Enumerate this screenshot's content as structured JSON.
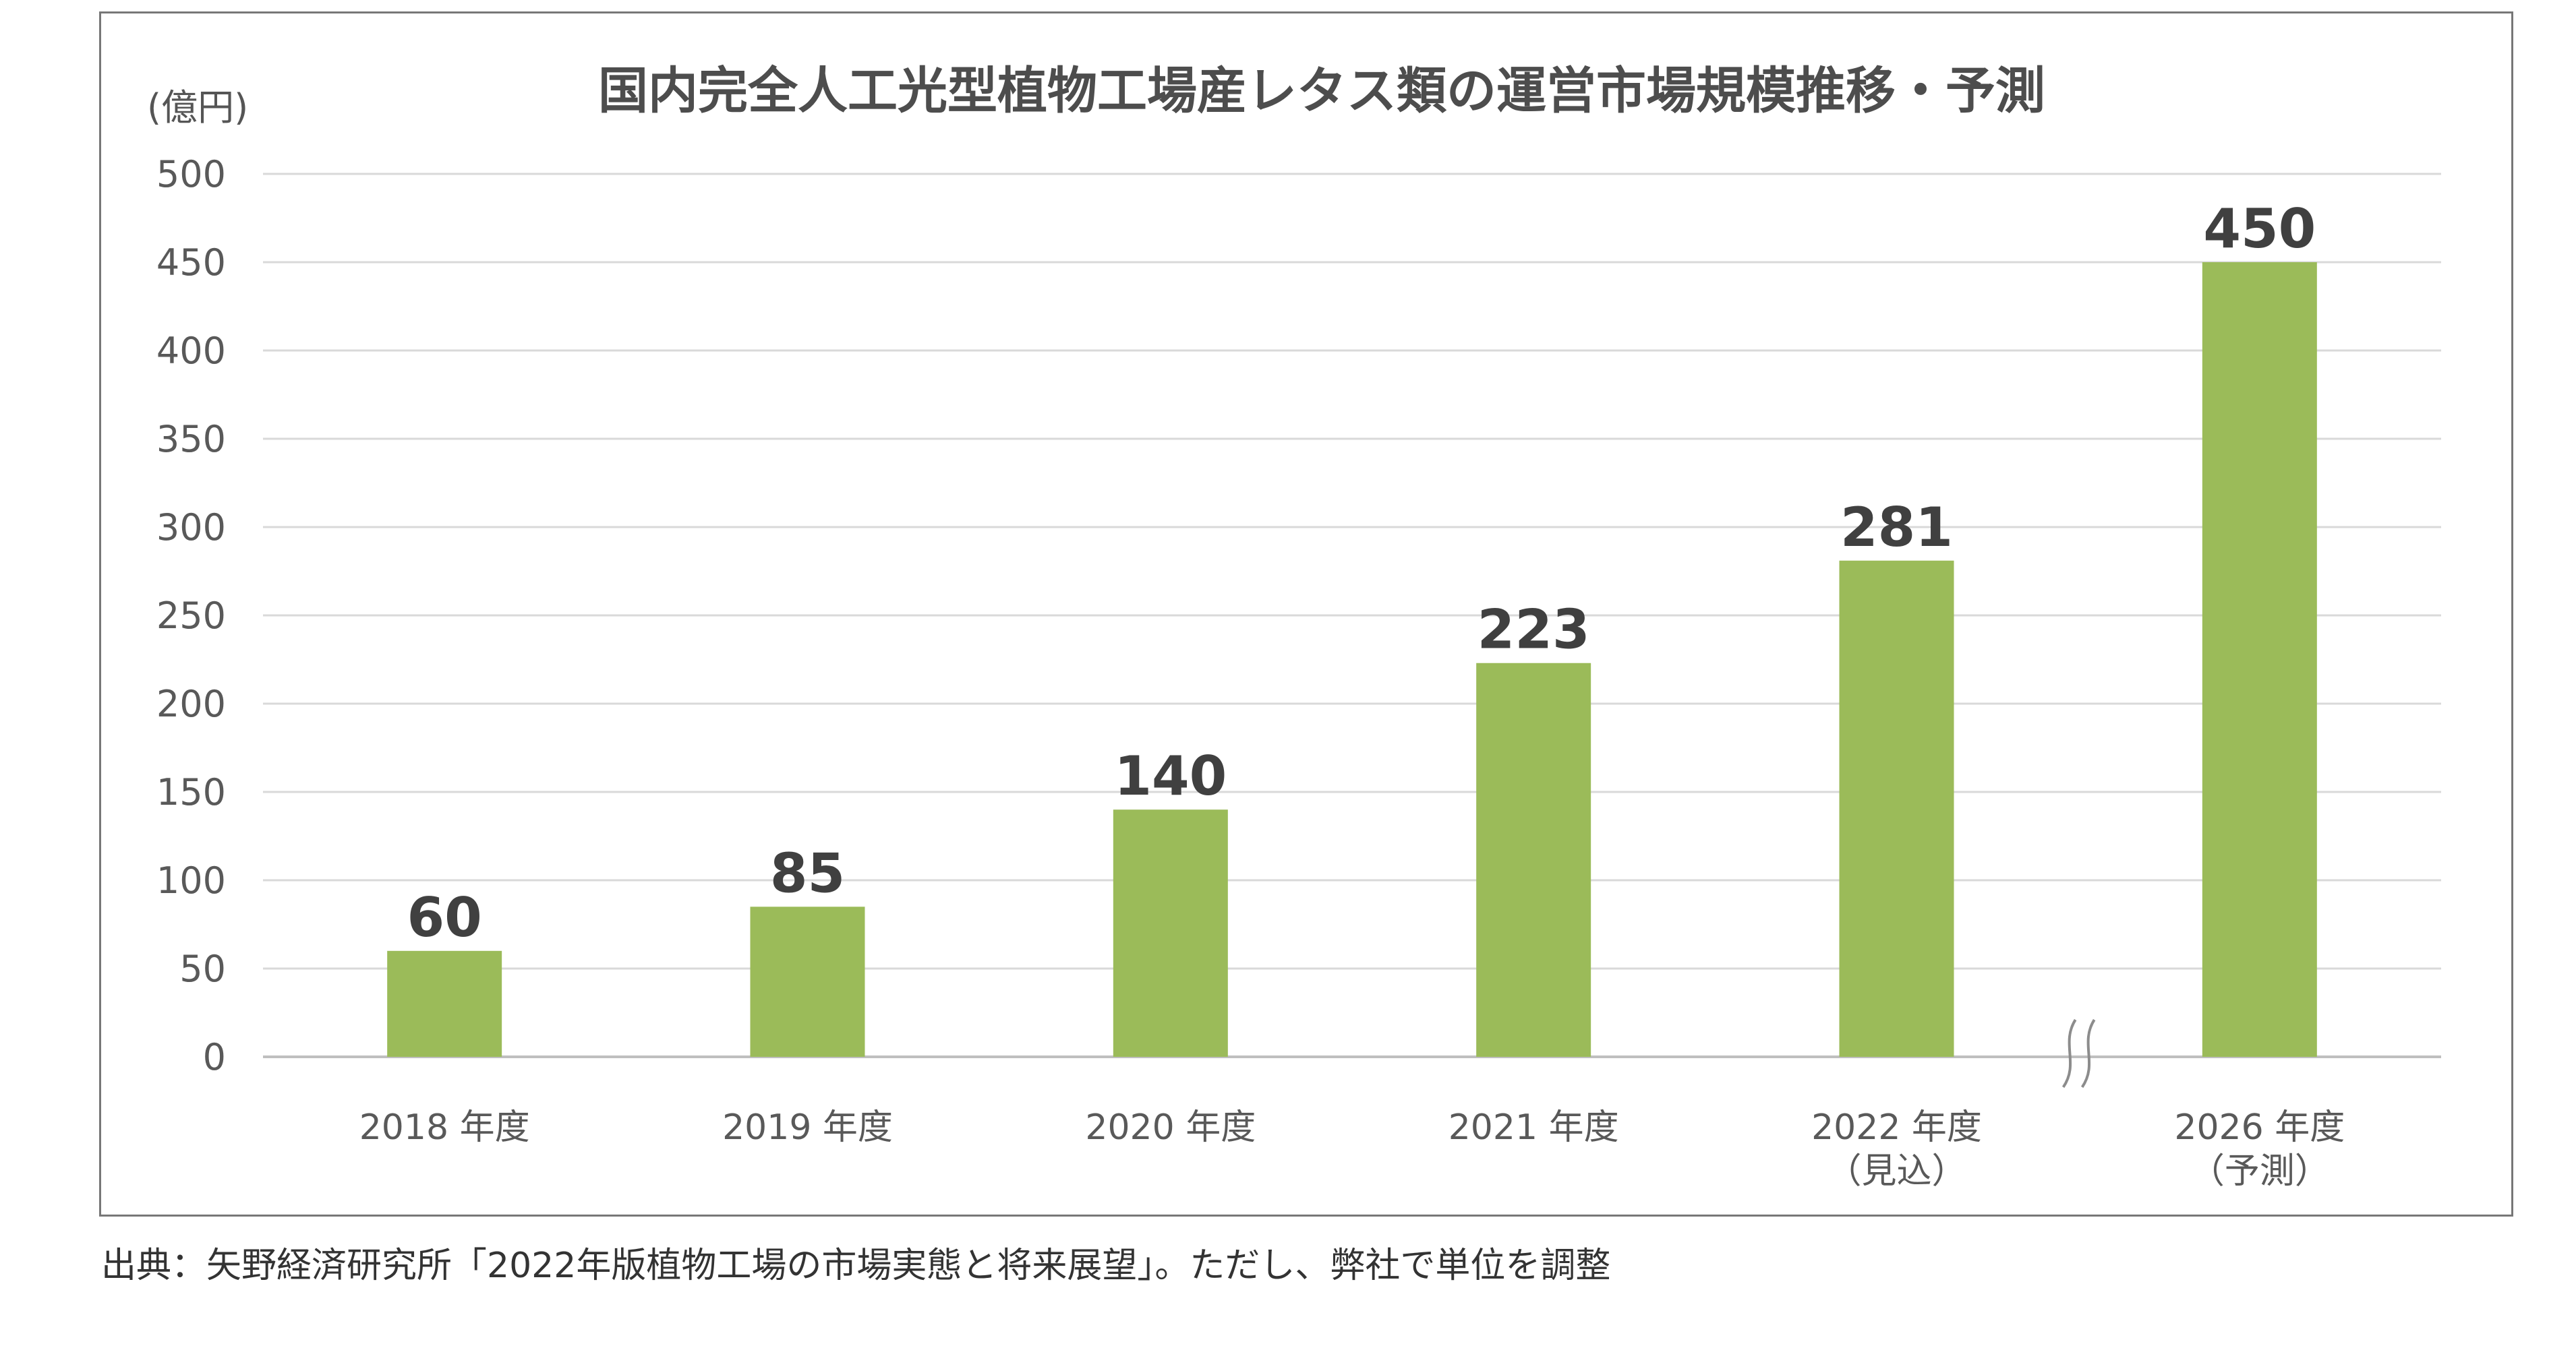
{
  "chart_data": {
    "type": "bar",
    "title": "国内完全人工光型植物工場産レタス類の運営市場規模推移・予測",
    "unit_label": "(億円)",
    "xlabel": "",
    "ylabel": "(億円)",
    "ylim": [
      0,
      500
    ],
    "yticks": [
      0,
      50,
      100,
      150,
      200,
      250,
      300,
      350,
      400,
      450,
      500
    ],
    "grid": true,
    "categories": [
      {
        "label": "2018 年度",
        "sub": ""
      },
      {
        "label": "2019 年度",
        "sub": ""
      },
      {
        "label": "2020 年度",
        "sub": ""
      },
      {
        "label": "2021 年度",
        "sub": ""
      },
      {
        "label": "2022 年度",
        "sub": "（見込）"
      },
      {
        "label": "2026 年度",
        "sub": "（予測）"
      }
    ],
    "values": [
      60,
      85,
      140,
      223,
      281,
      450
    ],
    "axis_break_before_index": 5,
    "bar_color": "#9bbb59"
  },
  "source": "出典：矢野経済研究所「2022年版植物工場の市場実態と将来展望」。ただし、弊社で単位を調整"
}
